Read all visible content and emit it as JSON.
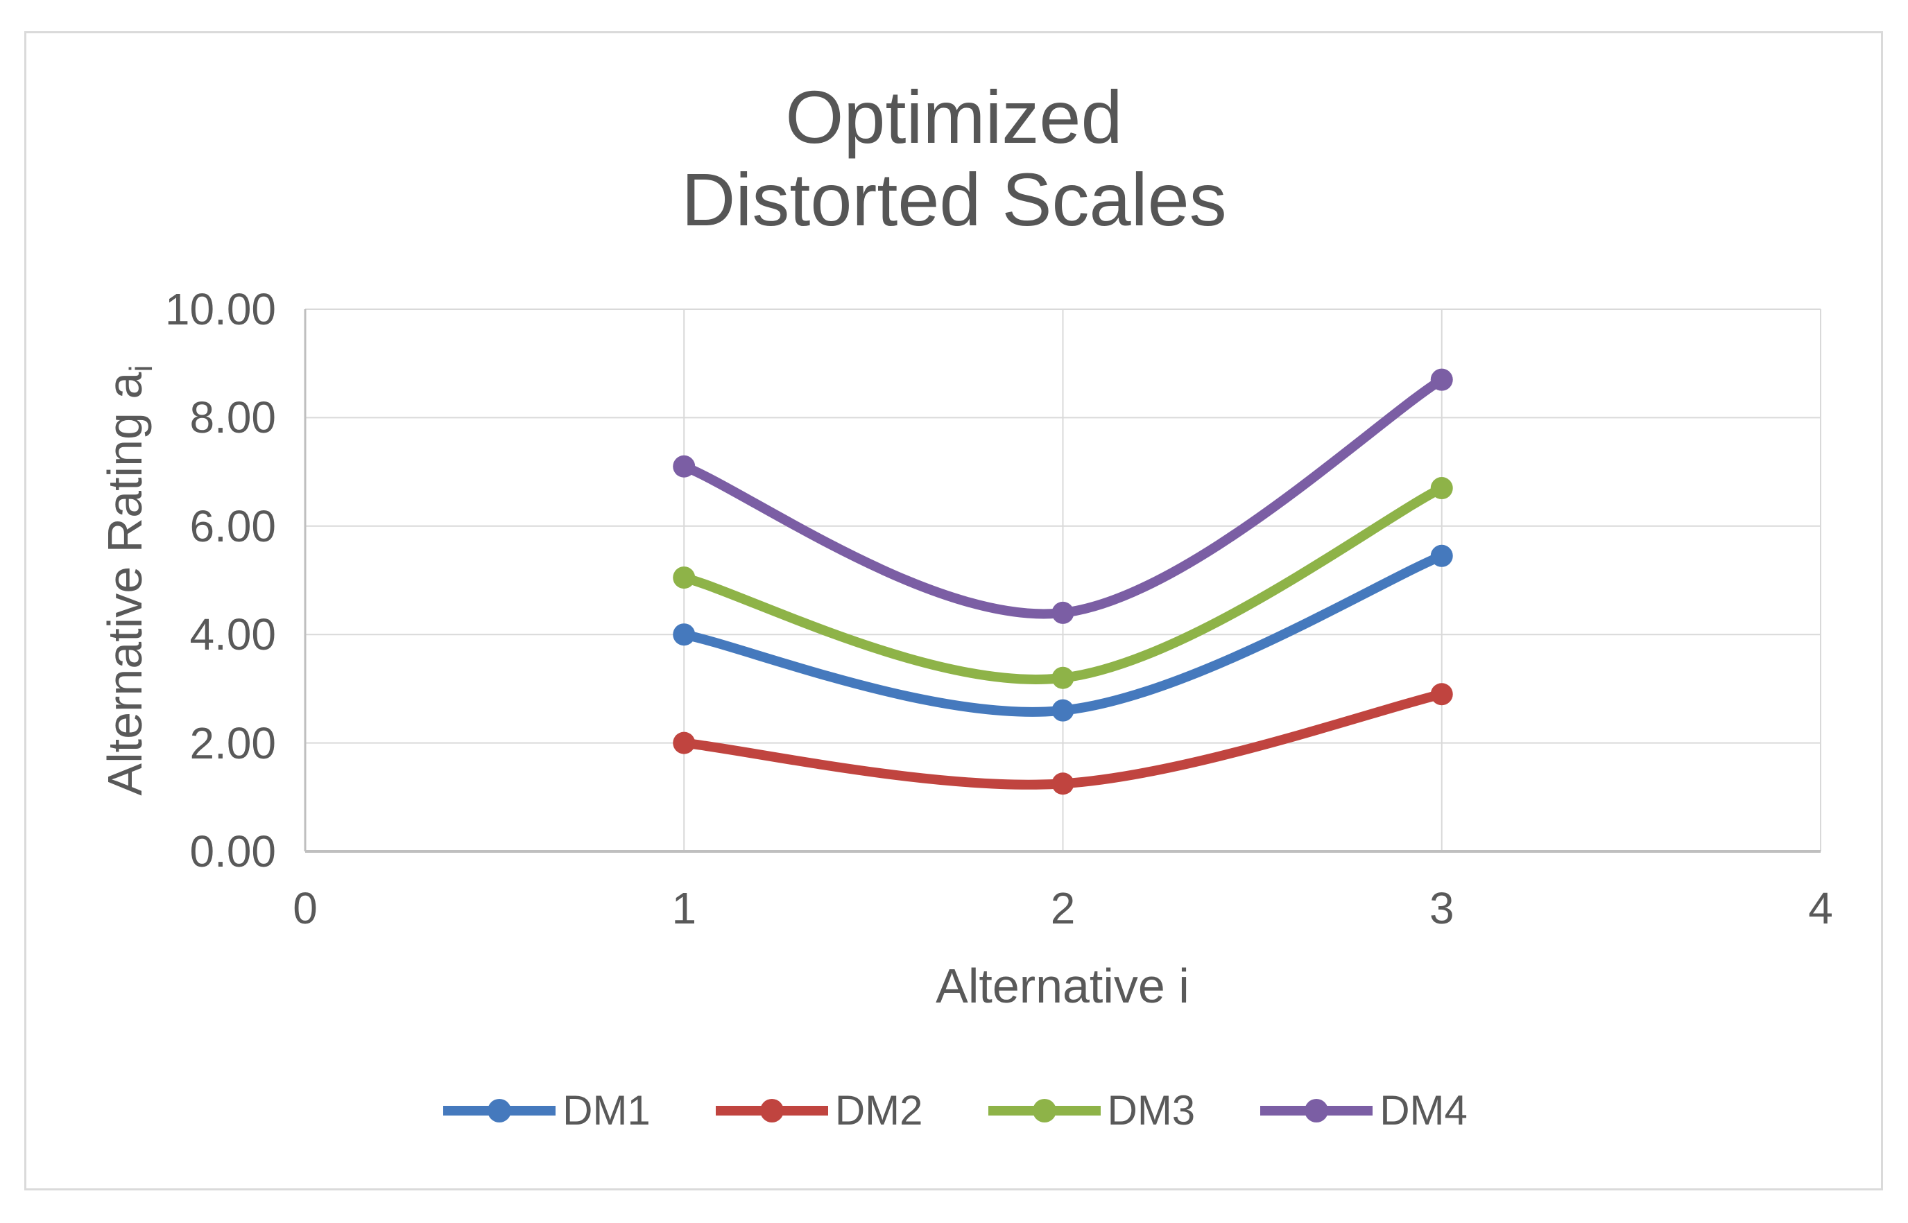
{
  "chart_data": {
    "type": "line",
    "title": "Optimized\nDistorted Scales",
    "xlabel": "Alternative i",
    "ylabel": "Alternative Rating aᵢ",
    "ylabel_main": "Alternative Rating a",
    "ylabel_sub": "i",
    "x": [
      1,
      2,
      3
    ],
    "series": [
      {
        "name": "DM1",
        "color": "#4579BD",
        "values": [
          4.0,
          2.6,
          5.45
        ]
      },
      {
        "name": "DM2",
        "color": "#C0443F",
        "values": [
          2.0,
          1.25,
          2.9
        ]
      },
      {
        "name": "DM3",
        "color": "#8EB348",
        "values": [
          5.05,
          3.2,
          6.7
        ]
      },
      {
        "name": "DM4",
        "color": "#7B5EA4",
        "values": [
          7.1,
          4.4,
          8.7
        ]
      }
    ],
    "xlim": [
      0,
      4
    ],
    "ylim": [
      0,
      10
    ],
    "x_ticks": [
      "0",
      "1",
      "2",
      "3",
      "4"
    ],
    "y_ticks": [
      "0.00",
      "2.00",
      "4.00",
      "6.00",
      "8.00",
      "10.00"
    ],
    "grid": true,
    "smooth_lines": true,
    "legend_position": "bottom",
    "colors": {
      "gridline": "#D9D9D9",
      "axis_line": "#BFBFBF",
      "text": "#595959",
      "title_text": "#565656",
      "border": "#DADADA"
    }
  }
}
